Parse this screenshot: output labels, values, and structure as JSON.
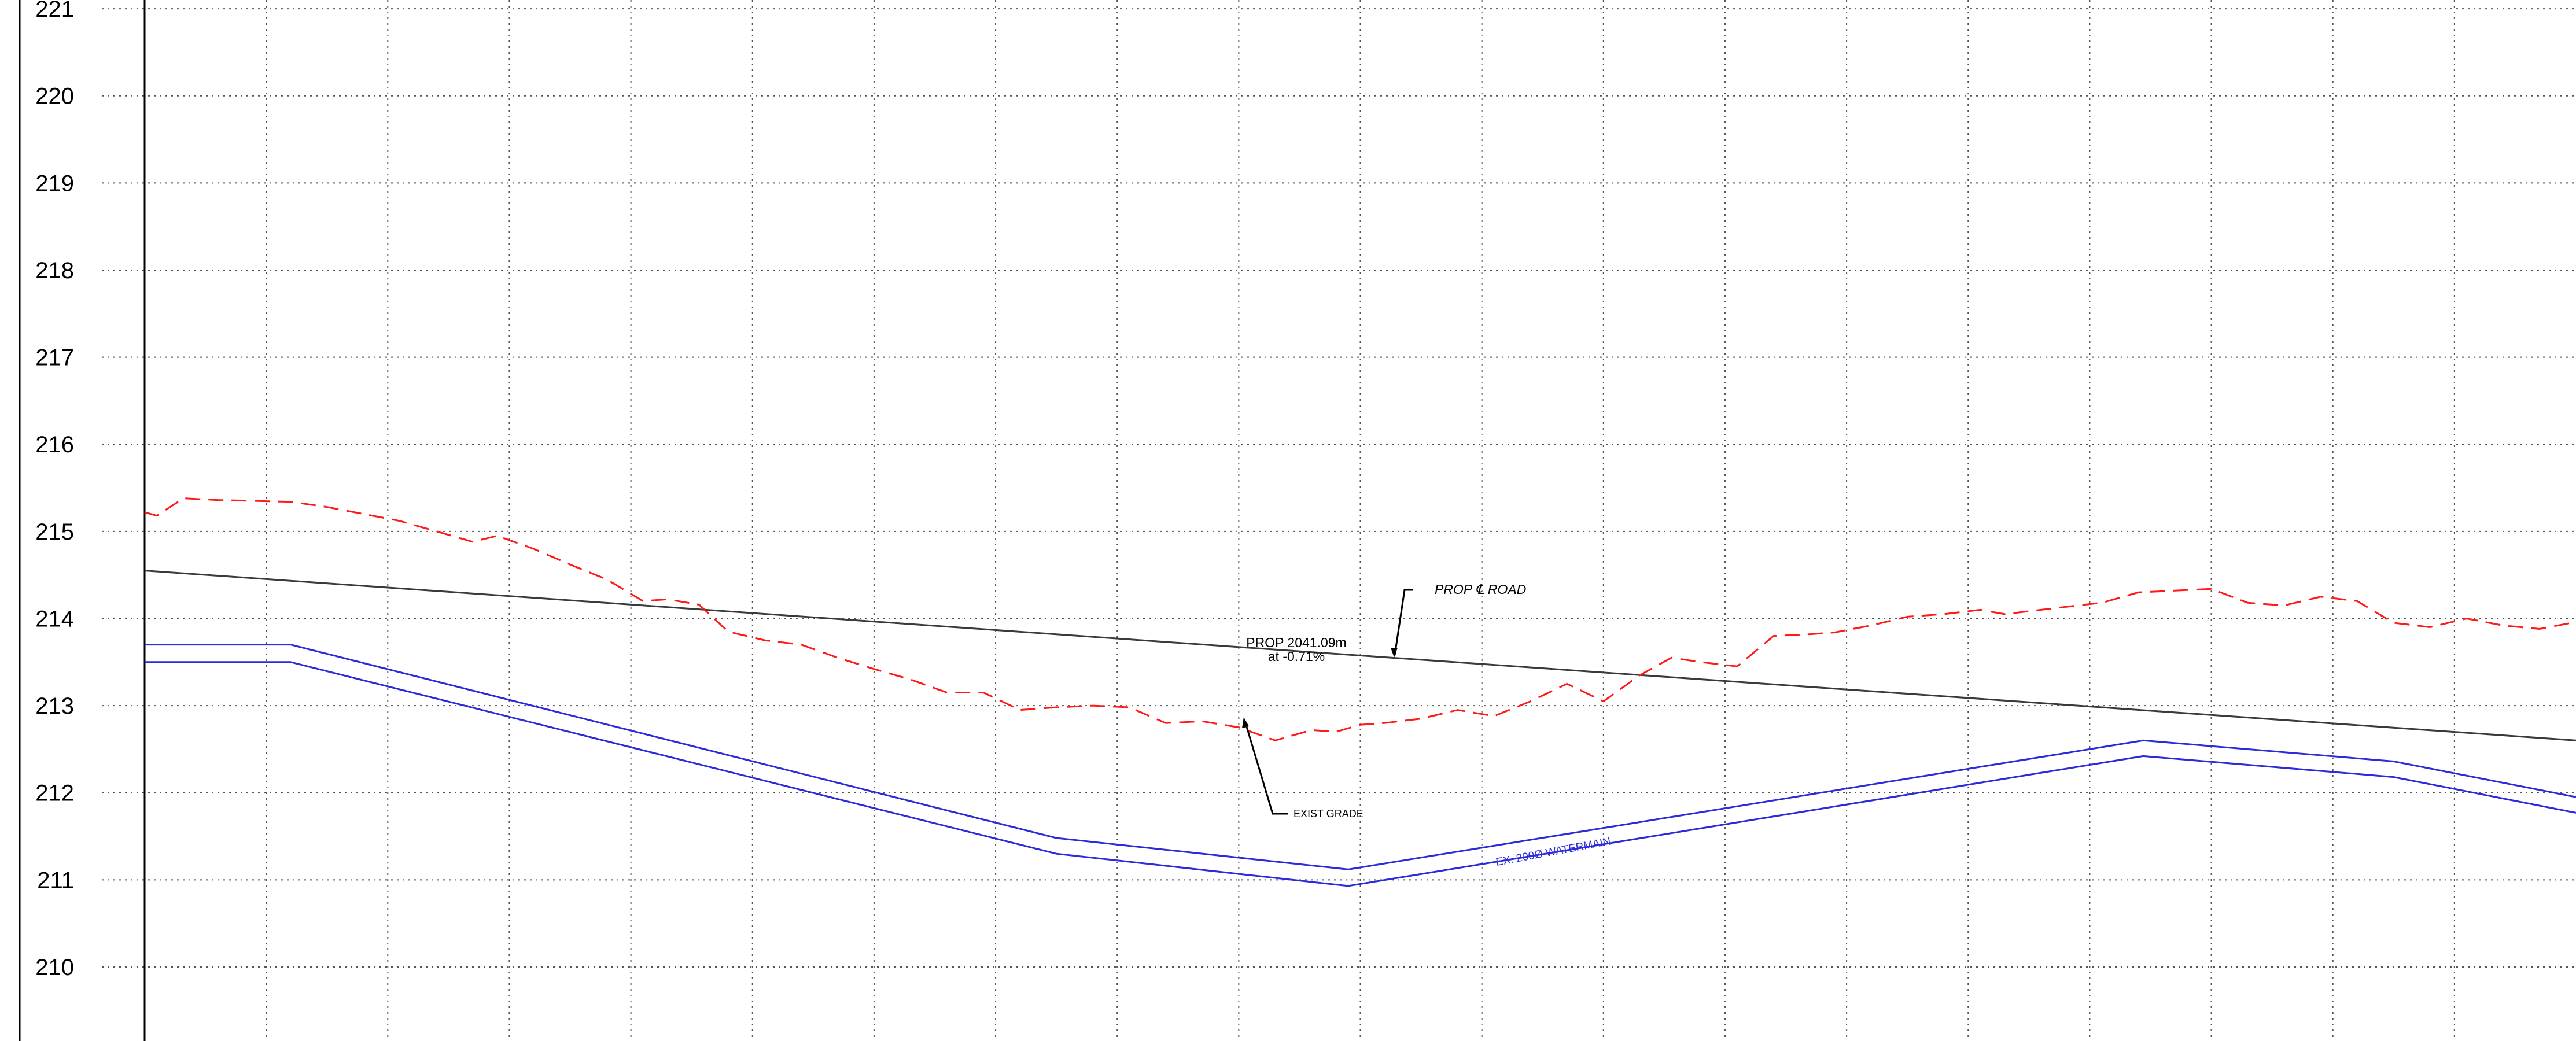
{
  "elevation_axis": {
    "ticks": [
      "210",
      "211",
      "212",
      "213",
      "214",
      "215",
      "216",
      "217",
      "218",
      "219",
      "220",
      "221"
    ]
  },
  "chart_data": {
    "type": "line",
    "elevation_range": [
      209.15,
      221.1
    ],
    "chainage_range": [
      0,
      100
    ],
    "series": [
      {
        "key": "prop_road",
        "name": "PROP ℄ ROAD",
        "color": "#3a3a3a",
        "style": "solid",
        "x": [
          0,
          100
        ],
        "y": [
          214.55,
          212.6
        ]
      },
      {
        "key": "exist_grade",
        "name": "EXIST GRADE",
        "color": "#ff1a1a",
        "style": "dashed",
        "x": [
          0,
          0.5,
          1.6,
          3.0,
          4.5,
          6.0,
          7.5,
          9.0,
          10.5,
          12.0,
          13.5,
          14.5,
          16.0,
          17.5,
          19.0,
          20.5,
          21.5,
          22.8,
          24.0,
          25.5,
          27.0,
          28.5,
          30.0,
          31.5,
          33.0,
          34.5,
          36.0,
          37.5,
          39.0,
          40.5,
          42.0,
          43.5,
          45.0,
          46.5,
          48.0,
          49.0,
          50.0,
          51.0,
          52.5,
          54.0,
          55.5,
          57.0,
          58.5,
          60.0,
          61.5,
          62.8,
          64.0,
          65.5,
          67.0,
          68.5,
          69.5,
          71.0,
          72.5,
          74.0,
          75.5,
          76.5,
          78.0,
          79.5,
          80.5,
          82.0,
          83.5,
          85.0,
          86.5,
          88.0,
          89.5,
          91.0,
          92.5,
          94.0,
          95.5,
          97.0,
          98.5,
          100
        ],
        "y": [
          215.22,
          215.18,
          215.38,
          215.36,
          215.35,
          215.34,
          215.28,
          215.2,
          215.12,
          215.0,
          214.88,
          214.95,
          214.8,
          214.62,
          214.45,
          214.2,
          214.22,
          214.16,
          213.85,
          213.75,
          213.7,
          213.55,
          213.42,
          213.3,
          213.15,
          213.15,
          212.95,
          212.98,
          213.0,
          212.98,
          212.8,
          212.82,
          212.75,
          212.6,
          212.72,
          212.7,
          212.78,
          212.8,
          212.85,
          212.95,
          212.88,
          213.05,
          213.25,
          213.05,
          213.35,
          213.55,
          213.5,
          213.45,
          213.8,
          213.82,
          213.84,
          213.92,
          214.02,
          214.05,
          214.1,
          214.05,
          214.1,
          214.15,
          214.18,
          214.3,
          214.32,
          214.34,
          214.18,
          214.15,
          214.25,
          214.2,
          213.95,
          213.9,
          214.0,
          213.92,
          213.88,
          213.96
        ]
      },
      {
        "key": "watermain_top",
        "name": "EX. 200Ø WATERMAIN",
        "color": "#2b2bdc",
        "style": "solid",
        "x": [
          0,
          6.0,
          37.5,
          49.5,
          82.2,
          92.5,
          100
        ],
        "y": [
          213.7,
          213.7,
          211.48,
          211.12,
          212.6,
          212.36,
          211.95
        ]
      },
      {
        "key": "watermain_bottom",
        "name": "",
        "color": "#2b2bdc",
        "style": "solid",
        "x": [
          0,
          6.0,
          37.5,
          49.5,
          82.2,
          92.5,
          100
        ],
        "y": [
          213.5,
          213.5,
          211.3,
          210.93,
          212.42,
          212.18,
          211.77
        ]
      }
    ]
  },
  "annotations": {
    "road_label": "PROP ℄ ROAD",
    "grade_length": "PROP 2041.09m",
    "grade_slope": "at -0.71%",
    "exist_grade_label": "EXIST GRADE",
    "watermain_label": "EX. 200Ø WATERMAIN"
  }
}
